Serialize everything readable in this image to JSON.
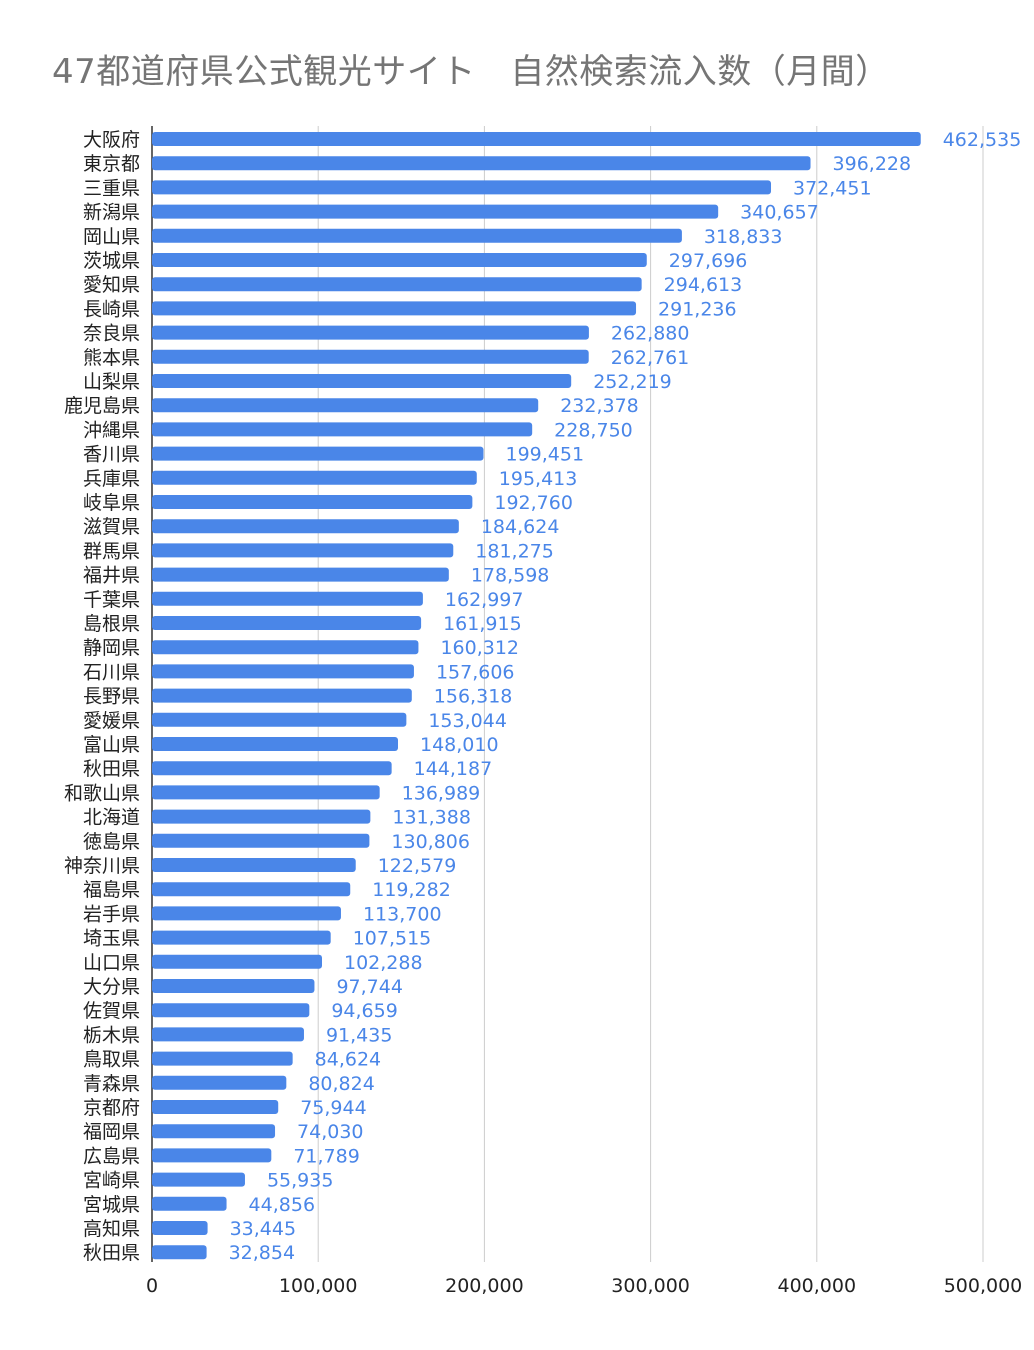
{
  "chart_data": {
    "type": "bar",
    "orientation": "horizontal",
    "title": "47都道府県公式観光サイト　自然検索流入数（月間）",
    "xlabel": "",
    "ylabel": "",
    "xlim": [
      0,
      500000
    ],
    "x_ticks": [
      "0",
      "100,000",
      "200,000",
      "300,000",
      "400,000",
      "500,000"
    ],
    "grid": "vertical",
    "legend": "none",
    "bar_color": "#4a86e8",
    "label_color": "#4a86e8",
    "categories": [
      "大阪府",
      "東京都",
      "三重県",
      "新潟県",
      "岡山県",
      "茨城県",
      "愛知県",
      "長崎県",
      "奈良県",
      "熊本県",
      "山梨県",
      "鹿児島県",
      "沖縄県",
      "香川県",
      "兵庫県",
      "岐阜県",
      "滋賀県",
      "群馬県",
      "福井県",
      "千葉県",
      "島根県",
      "静岡県",
      "石川県",
      "長野県",
      "愛媛県",
      "富山県",
      "秋田県",
      "和歌山県",
      "北海道",
      "徳島県",
      "神奈川県",
      "福島県",
      "岩手県",
      "埼玉県",
      "山口県",
      "大分県",
      "佐賀県",
      "栃木県",
      "鳥取県",
      "青森県",
      "京都府",
      "福岡県",
      "広島県",
      "宮崎県",
      "宮城県",
      "高知県",
      "秋田県"
    ],
    "values": [
      462535,
      396228,
      372451,
      340657,
      318833,
      297696,
      294613,
      291236,
      262880,
      262761,
      252219,
      232378,
      228750,
      199451,
      195413,
      192760,
      184624,
      181275,
      178598,
      162997,
      161915,
      160312,
      157606,
      156318,
      153044,
      148010,
      144187,
      136989,
      131388,
      130806,
      122579,
      119282,
      113700,
      107515,
      102288,
      97744,
      94659,
      91435,
      84624,
      80824,
      75944,
      74030,
      71789,
      55935,
      44856,
      33445,
      32854
    ],
    "value_labels": [
      "462,535",
      "396,228",
      "372,451",
      "340,657",
      "318,833",
      "297,696",
      "294,613",
      "291,236",
      "262,880",
      "262,761",
      "252,219",
      "232,378",
      "228,750",
      "199,451",
      "195,413",
      "192,760",
      "184,624",
      "181,275",
      "178,598",
      "162,997",
      "161,915",
      "160,312",
      "157,606",
      "156,318",
      "153,044",
      "148,010",
      "144,187",
      "136,989",
      "131,388",
      "130,806",
      "122,579",
      "119,282",
      "113,700",
      "107,515",
      "102,288",
      "97,744",
      "94,659",
      "91,435",
      "84,624",
      "80,824",
      "75,944",
      "74,030",
      "71,789",
      "55,935",
      "44,856",
      "33,445",
      "32,854"
    ]
  }
}
